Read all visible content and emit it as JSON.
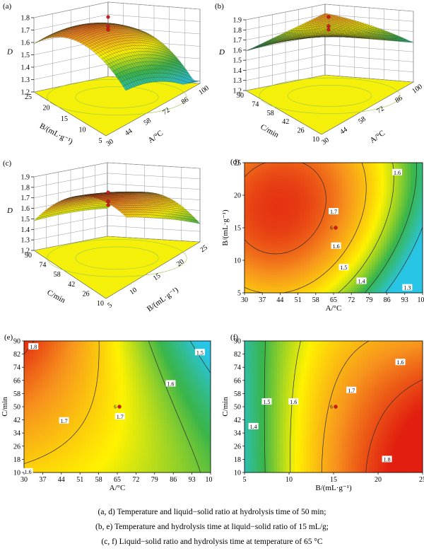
{
  "chart_data": [
    {
      "panel": "(a)",
      "type": "surface3d",
      "zlabel": "D",
      "xlabel": "A/°C",
      "ylabel": "B/(mL·g⁻¹)",
      "x_ticks": [
        "30",
        "44",
        "58",
        "72",
        "86",
        "100"
      ],
      "y_ticks": [
        "5",
        "10",
        "15",
        "20",
        "25"
      ],
      "z_ticks": [
        "1.2",
        "1.3",
        "1.4",
        "1.5",
        "1.6",
        "1.7",
        "1.8"
      ],
      "zlim": [
        1.2,
        1.8
      ]
    },
    {
      "panel": "(b)",
      "type": "surface3d",
      "zlabel": "D",
      "xlabel": "A/°C",
      "ylabel": "C/min",
      "x_ticks": [
        "30",
        "44",
        "58",
        "72",
        "86",
        "100"
      ],
      "y_ticks": [
        "10",
        "26",
        "42",
        "58",
        "74",
        "90"
      ],
      "z_ticks": [
        "1.2",
        "1.3",
        "1.4",
        "1.5",
        "1.6",
        "1.7",
        "1.8",
        "1.9"
      ],
      "zlim": [
        1.2,
        1.9
      ]
    },
    {
      "panel": "(c)",
      "type": "surface3d",
      "zlabel": "D",
      "xlabel": "B/(mL·g⁻¹)",
      "ylabel": "C/min",
      "x_ticks": [
        "5",
        "10",
        "15",
        "20",
        "25"
      ],
      "y_ticks": [
        "10",
        "26",
        "42",
        "58",
        "74",
        "90"
      ],
      "z_ticks": [
        "1.2",
        "1.3",
        "1.4",
        "1.5",
        "1.6",
        "1.7",
        "1.8",
        "1.9"
      ],
      "zlim": [
        1.2,
        1.9
      ]
    },
    {
      "panel": "(d)",
      "type": "contour",
      "xlabel": "A/°C",
      "ylabel": "B/(mL·g⁻¹)",
      "x_ticks": [
        "30",
        "37",
        "44",
        "51",
        "58",
        "65",
        "72",
        "79",
        "86",
        "93",
        "100"
      ],
      "y_ticks": [
        "5",
        "10",
        "15",
        "20",
        "25"
      ],
      "xlim": [
        30,
        100
      ],
      "ylim": [
        5,
        25
      ],
      "contour_labels": [
        {
          "text": "1.7",
          "x": 65,
          "y": 17.5
        },
        {
          "text": "1.6",
          "x": 90,
          "y": 23.5
        },
        {
          "text": "1.6",
          "x": 66,
          "y": 12.2
        },
        {
          "text": "1.5",
          "x": 69,
          "y": 8.9
        },
        {
          "text": "1.4",
          "x": 76,
          "y": 6.8
        },
        {
          "text": "1.3",
          "x": 94,
          "y": 5.8
        }
      ],
      "design_point": {
        "x": 65,
        "y": 15
      },
      "design_point_label": "6"
    },
    {
      "panel": "(e)",
      "type": "contour",
      "xlabel": "A/°C",
      "ylabel": "C/min",
      "x_ticks": [
        "30",
        "37",
        "44",
        "51",
        "58",
        "65",
        "72",
        "79",
        "86",
        "93",
        "100"
      ],
      "y_ticks": [
        "10",
        "18",
        "26",
        "34",
        "42",
        "50",
        "58",
        "66",
        "74",
        "82",
        "90"
      ],
      "xlim": [
        30,
        100
      ],
      "ylim": [
        10,
        90
      ],
      "contour_labels": [
        {
          "text": "1.8",
          "x": 33.5,
          "y": 86.5
        },
        {
          "text": "1.7",
          "x": 45,
          "y": 41.5
        },
        {
          "text": "1.7",
          "x": 66,
          "y": 44
        },
        {
          "text": "1.6",
          "x": 85,
          "y": 64
        },
        {
          "text": "1.5",
          "x": 96,
          "y": 83
        },
        {
          "text": "1.6",
          "x": 31.5,
          "y": 10.5
        }
      ],
      "design_point": {
        "x": 65,
        "y": 50
      },
      "design_point_label": "6"
    },
    {
      "panel": "(f)",
      "type": "contour",
      "xlabel": "B/(mL·g⁻¹)",
      "ylabel": "C/min",
      "x_ticks": [
        "5",
        "10",
        "15",
        "20",
        "25"
      ],
      "y_ticks": [
        "10",
        "18",
        "26",
        "34",
        "42",
        "50",
        "58",
        "66",
        "74",
        "82",
        "90"
      ],
      "xlim": [
        5,
        25
      ],
      "ylim": [
        10,
        90
      ],
      "contour_labels": [
        {
          "text": "1.5",
          "x": 7.5,
          "y": 53
        },
        {
          "text": "1.6",
          "x": 10.5,
          "y": 53
        },
        {
          "text": "1.4",
          "x": 6,
          "y": 38
        },
        {
          "text": "1.7",
          "x": 17,
          "y": 60
        },
        {
          "text": "1.6",
          "x": 22.5,
          "y": 77
        },
        {
          "text": "1.8",
          "x": 21,
          "y": 18
        }
      ],
      "design_point": {
        "x": 15,
        "y": 50
      },
      "design_point_label": "6"
    }
  ],
  "captions": [
    "(a, d) Temperature and liquid−solid ratio at hydrolysis time of 50 min;",
    "(b, e) Temperature and hydrolysis time at liquid−solid ratio of 15 mL/g;",
    "(c, f) Liquid−solid ratio and hydrolysis time at temperature of 65 °C"
  ],
  "colors": {
    "red": "#e21f10",
    "orange": "#f7941d",
    "yellow": "#fff200",
    "green": "#39b54a",
    "cyan": "#29c5e6",
    "floor": "#f4f00a",
    "point": "#d7191c"
  }
}
